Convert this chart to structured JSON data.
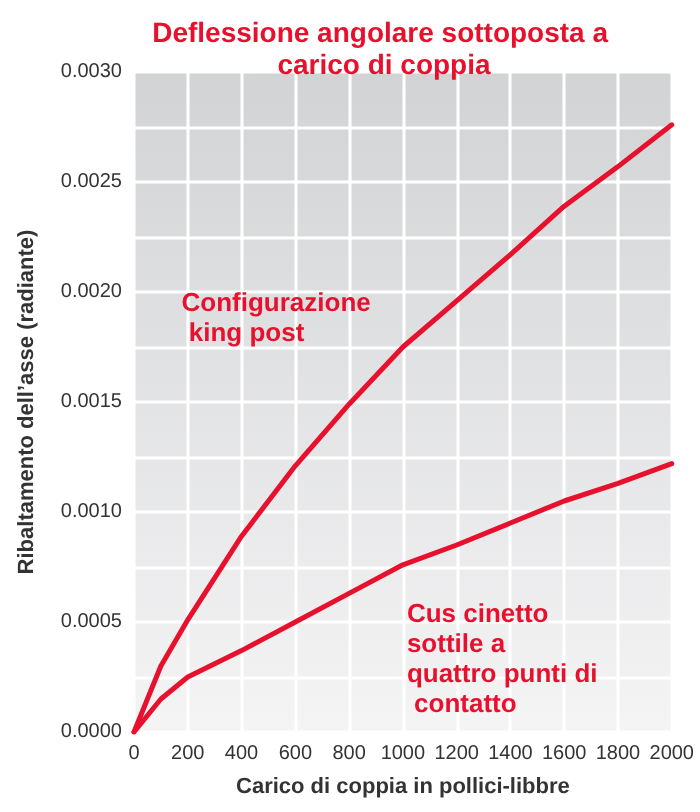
{
  "chart_data": {
    "type": "line",
    "title": "Deflessione angolare sottoposta a carico di coppia",
    "xlabel": "Carico di coppia in pollici-libbre",
    "ylabel": "Ribaltamento dell’asse (radiante)",
    "x": [
      0,
      100,
      200,
      400,
      600,
      800,
      1000,
      1200,
      1400,
      1600,
      1800,
      2000
    ],
    "series": [
      {
        "name": "Configurazione king post",
        "color": "#e8112d",
        "values": [
          0,
          0.0003,
          0.00051,
          0.00089,
          0.00121,
          0.00149,
          0.00175,
          0.00196,
          0.00217,
          0.00239,
          0.00257,
          0.00276
        ]
      },
      {
        "name": "Cus cinetto sottile a quattro punti di contatto",
        "color": "#e8112d",
        "values": [
          0,
          0.00015,
          0.00025,
          0.00037,
          0.0005,
          0.00063,
          0.00076,
          0.00085,
          0.00095,
          0.00105,
          0.00113,
          0.00122
        ]
      }
    ],
    "xlim": [
      0,
      2000
    ],
    "xticks": [
      0,
      200,
      400,
      600,
      800,
      1000,
      1200,
      1400,
      1600,
      1800,
      2000
    ],
    "ylim": [
      0,
      0.003
    ],
    "yticks": [
      {
        "value": 0,
        "label": "0.0000"
      },
      {
        "value": 0.00025,
        "label": null
      },
      {
        "value": 0.0005,
        "label": "0.0005"
      },
      {
        "value": 0.00075,
        "label": null
      },
      {
        "value": 0.001,
        "label": "0.0010"
      },
      {
        "value": 0.00125,
        "label": null
      },
      {
        "value": 0.0015,
        "label": "0.0015"
      },
      {
        "value": 0.00175,
        "label": null
      },
      {
        "value": 0.002,
        "label": "0.0020"
      },
      {
        "value": 0.00225,
        "label": null
      },
      {
        "value": 0.0025,
        "label": "0.0025"
      },
      {
        "value": 0.00275,
        "label": null
      },
      {
        "value": 0.003,
        "label": "0.0030"
      }
    ],
    "grid": true,
    "legend": false,
    "marker": "none",
    "line_style": "solid"
  }
}
